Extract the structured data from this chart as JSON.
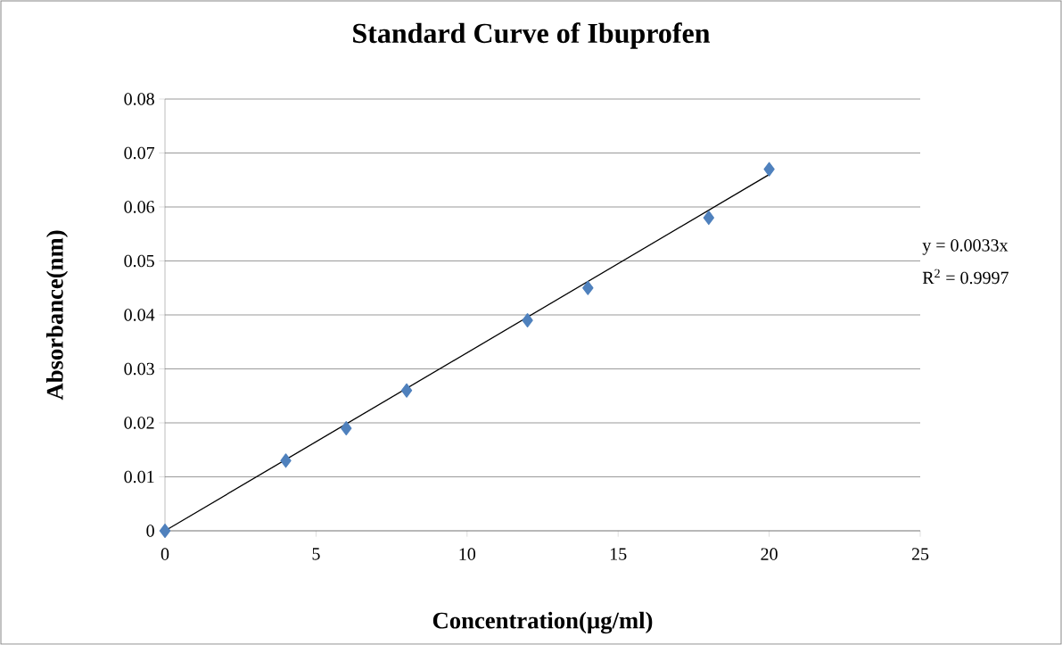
{
  "chart_data": {
    "type": "scatter",
    "title": "Standard Curve of Ibuprofen",
    "xlabel": "Concentration(µg/ml)",
    "ylabel": "Absorbance(nm)",
    "series": [
      {
        "color": "#4f81bd",
        "marker": "diamond",
        "x": [
          0,
          4,
          6,
          8,
          12,
          14,
          18,
          20
        ],
        "values": [
          0,
          0.013,
          0.019,
          0.026,
          0.039,
          0.045,
          0.058,
          0.067
        ]
      },
      {
        "type": "line",
        "color": "#000000",
        "marker": "none",
        "x": [
          0,
          20
        ],
        "values": [
          0,
          0.066
        ]
      }
    ],
    "xlim": [
      0,
      25
    ],
    "xticks": [
      0,
      5,
      10,
      15,
      20,
      25
    ],
    "ylim": [
      0,
      0.08
    ],
    "yticks": [
      0,
      0.01,
      0.02,
      0.03,
      0.04,
      0.05,
      0.06,
      0.07,
      0.08
    ],
    "grid": "y",
    "annotations": [
      "y = 0.0033x",
      "R$^{2}$ = 0.9997"
    ]
  }
}
